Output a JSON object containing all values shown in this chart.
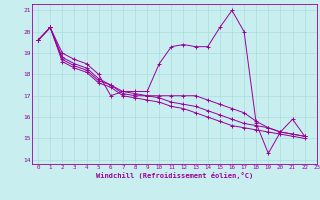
{
  "xlabel": "Windchill (Refroidissement éolien,°C)",
  "bg_color": "#c8eef0",
  "line_color": "#990099",
  "grid_color": "#aadddd",
  "xlim": [
    -0.5,
    23
  ],
  "ylim": [
    13.8,
    21.3
  ],
  "yticks": [
    14,
    15,
    16,
    17,
    18,
    19,
    20,
    21
  ],
  "xticks": [
    0,
    1,
    2,
    3,
    4,
    5,
    6,
    7,
    8,
    9,
    10,
    11,
    12,
    13,
    14,
    15,
    16,
    17,
    18,
    19,
    20,
    21,
    22,
    23
  ],
  "series": [
    [
      19.6,
      20.2,
      19.0,
      18.7,
      18.5,
      18.0,
      17.0,
      17.2,
      17.2,
      17.2,
      18.5,
      19.3,
      19.4,
      19.3,
      19.3,
      20.2,
      21.0,
      20.0,
      15.7,
      14.3,
      15.3,
      15.9,
      15.1,
      null
    ],
    [
      19.6,
      20.2,
      18.8,
      18.5,
      18.3,
      17.8,
      17.5,
      17.2,
      17.1,
      17.0,
      17.0,
      17.0,
      17.0,
      17.0,
      16.8,
      16.6,
      16.4,
      16.2,
      15.8,
      15.5,
      15.3,
      15.2,
      15.1,
      null
    ],
    [
      19.6,
      20.2,
      18.7,
      18.4,
      18.2,
      17.7,
      17.5,
      17.1,
      17.0,
      17.0,
      16.9,
      16.7,
      16.6,
      16.5,
      16.3,
      16.1,
      15.9,
      15.7,
      15.6,
      15.5,
      15.3,
      15.2,
      15.1,
      null
    ],
    [
      19.6,
      20.2,
      18.6,
      18.3,
      18.1,
      17.6,
      17.4,
      17.0,
      16.9,
      16.8,
      16.7,
      16.5,
      16.4,
      16.2,
      16.0,
      15.8,
      15.6,
      15.5,
      15.4,
      15.3,
      15.2,
      15.1,
      15.0,
      null
    ]
  ]
}
